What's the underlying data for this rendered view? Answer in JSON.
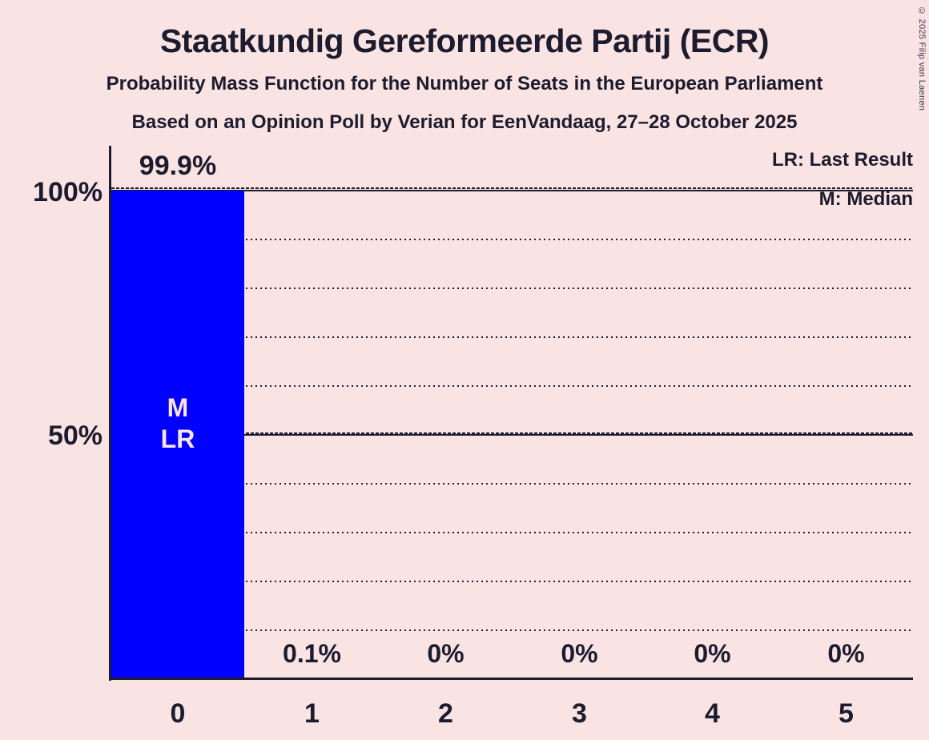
{
  "header": {
    "title": "Staatkundig Gereformeerde Partij (ECR)",
    "subtitle1": "Probability Mass Function for the Number of Seats in the European Parliament",
    "subtitle2": "Based on an Opinion Poll by Verian for EenVandaag, 27–28 October 2025"
  },
  "legend": {
    "last_result": "LR: Last Result",
    "median": "M: Median"
  },
  "copyright": "© 2025 Filip van Laenen",
  "y_axis": {
    "label_100": "100%",
    "label_50": "50%"
  },
  "bar_annotations": {
    "median": "M",
    "last_result": "LR"
  },
  "chart_data": {
    "type": "bar",
    "title": "Staatkundig Gereformeerde Partij (ECR)",
    "subtitle": "Probability Mass Function for the Number of Seats in the European Parliament",
    "source": "Based on an Opinion Poll by Verian for EenVandaag, 27–28 October 2025",
    "categories": [
      "0",
      "1",
      "2",
      "3",
      "4",
      "5"
    ],
    "values": [
      99.9,
      0.1,
      0,
      0,
      0,
      0
    ],
    "value_labels": [
      "99.9%",
      "0.1%",
      "0%",
      "0%",
      "0%",
      "0%"
    ],
    "xlabel": "",
    "ylabel": "",
    "ylim": [
      0,
      100
    ],
    "y_ticks_shown": [
      "100%",
      "50%"
    ],
    "gridlines": "dotted horizontal every 10%, solid at 50% and 100%",
    "legend_position": "top-right",
    "median_seat": 0,
    "last_result_seat": 0,
    "bar_color": "#0000ff",
    "background_color": "#fae3e3",
    "text_color": "#1c1c2e"
  }
}
